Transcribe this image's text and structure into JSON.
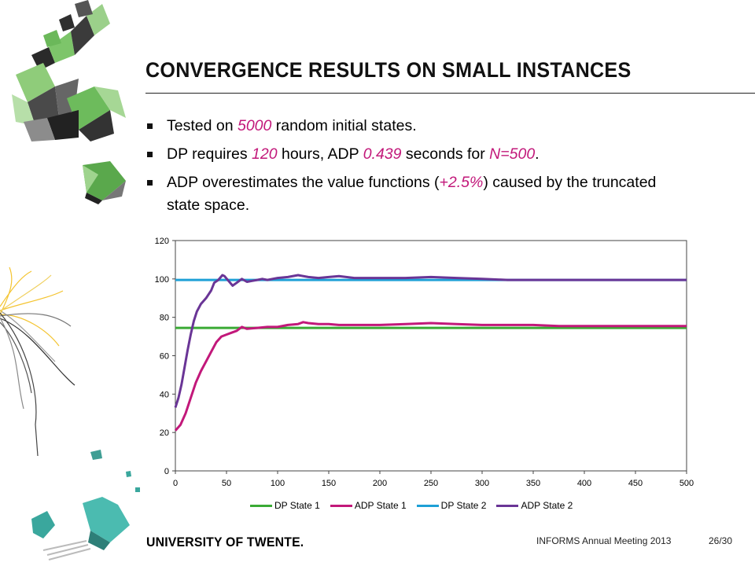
{
  "slide": {
    "title": "CONVERGENCE RESULTS ON SMALL INSTANCES",
    "bullets": [
      {
        "parts": [
          {
            "text": "Tested on "
          },
          {
            "text": "5000",
            "hl": true
          },
          {
            "text": " random initial states."
          }
        ]
      },
      {
        "parts": [
          {
            "text": "DP requires "
          },
          {
            "text": "120",
            "hl": true
          },
          {
            "text": " hours, ADP "
          },
          {
            "text": "0.439",
            "hl": true
          },
          {
            "text": " seconds for "
          },
          {
            "text": "N=500",
            "hl": true
          },
          {
            "text": "."
          }
        ]
      },
      {
        "parts": [
          {
            "text": "ADP overestimates the value functions ("
          },
          {
            "text": "+2.5%",
            "hl": true
          },
          {
            "text": ") caused by the truncated state space."
          }
        ]
      }
    ],
    "highlight_color": "#c2187a"
  },
  "chart_data": {
    "type": "line",
    "title": "",
    "xlabel": "",
    "ylabel": "",
    "xlim": [
      0,
      500
    ],
    "ylim": [
      0,
      120
    ],
    "x_ticks": [
      0,
      50,
      100,
      150,
      200,
      250,
      300,
      350,
      400,
      450,
      500
    ],
    "y_ticks": [
      0,
      20,
      40,
      60,
      80,
      100,
      120
    ],
    "grid": false,
    "legend_position": "bottom",
    "series": [
      {
        "name": "DP State 1",
        "color": "#3aaa35",
        "points": [
          [
            0,
            74.5
          ],
          [
            500,
            74.5
          ]
        ]
      },
      {
        "name": "ADP State 1",
        "color": "#c2187a",
        "points": [
          [
            0,
            21
          ],
          [
            5,
            24
          ],
          [
            10,
            30
          ],
          [
            15,
            38
          ],
          [
            20,
            46
          ],
          [
            25,
            52
          ],
          [
            30,
            57
          ],
          [
            35,
            62
          ],
          [
            40,
            67
          ],
          [
            45,
            70
          ],
          [
            50,
            71
          ],
          [
            55,
            72
          ],
          [
            60,
            73
          ],
          [
            65,
            75
          ],
          [
            70,
            74
          ],
          [
            80,
            74.5
          ],
          [
            90,
            75
          ],
          [
            100,
            75
          ],
          [
            110,
            76
          ],
          [
            120,
            76.5
          ],
          [
            125,
            77.5
          ],
          [
            130,
            77
          ],
          [
            140,
            76.5
          ],
          [
            150,
            76.5
          ],
          [
            160,
            76
          ],
          [
            175,
            76
          ],
          [
            200,
            76
          ],
          [
            225,
            76.5
          ],
          [
            250,
            77
          ],
          [
            275,
            76.5
          ],
          [
            300,
            76
          ],
          [
            325,
            76
          ],
          [
            350,
            76
          ],
          [
            375,
            75.5
          ],
          [
            400,
            75.5
          ],
          [
            425,
            75.5
          ],
          [
            450,
            75.5
          ],
          [
            475,
            75.5
          ],
          [
            500,
            75.5
          ]
        ]
      },
      {
        "name": "DP State 2",
        "color": "#1ea0d6",
        "points": [
          [
            0,
            99.5
          ],
          [
            500,
            99.5
          ]
        ]
      },
      {
        "name": "ADP State 2",
        "color": "#6a3596",
        "points": [
          [
            0,
            33
          ],
          [
            3,
            38
          ],
          [
            6,
            45
          ],
          [
            9,
            54
          ],
          [
            12,
            63
          ],
          [
            15,
            71
          ],
          [
            18,
            78
          ],
          [
            21,
            83
          ],
          [
            25,
            87
          ],
          [
            30,
            90
          ],
          [
            35,
            94
          ],
          [
            38,
            98
          ],
          [
            42,
            99.5
          ],
          [
            46,
            102
          ],
          [
            48,
            101.5
          ],
          [
            52,
            99
          ],
          [
            56,
            96.5
          ],
          [
            60,
            98
          ],
          [
            65,
            100
          ],
          [
            70,
            98.5
          ],
          [
            75,
            99
          ],
          [
            80,
            99.5
          ],
          [
            85,
            100
          ],
          [
            90,
            99.5
          ],
          [
            95,
            100
          ],
          [
            100,
            100.5
          ],
          [
            110,
            101
          ],
          [
            120,
            102
          ],
          [
            130,
            101
          ],
          [
            140,
            100.5
          ],
          [
            150,
            101
          ],
          [
            160,
            101.5
          ],
          [
            175,
            100.5
          ],
          [
            200,
            100.5
          ],
          [
            225,
            100.5
          ],
          [
            250,
            101
          ],
          [
            275,
            100.5
          ],
          [
            300,
            100
          ],
          [
            325,
            99.5
          ],
          [
            350,
            99.5
          ],
          [
            375,
            99.5
          ],
          [
            400,
            99.5
          ],
          [
            425,
            99.5
          ],
          [
            450,
            99.5
          ],
          [
            475,
            99.5
          ],
          [
            500,
            99.5
          ]
        ]
      }
    ]
  },
  "footer": {
    "logo": "UNIVERSITY OF TWENTE.",
    "meta": "INFORMS Annual Meeting 2013",
    "page": "26/30"
  }
}
